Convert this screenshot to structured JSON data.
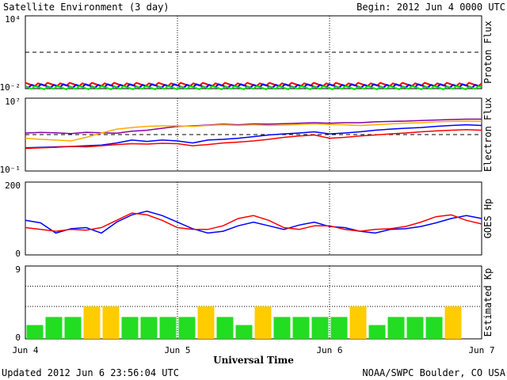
{
  "header": {
    "title": "Satellite Environment (3 day)",
    "begin": "Begin:  2012 Jun 4 0000 UTC"
  },
  "footer": {
    "updated": "Updated 2012 Jun  6 23:56:04 UTC",
    "credit": "NOAA/SWPC Boulder, CO USA"
  },
  "chart_data": [
    {
      "type": "line",
      "ylabel": "Proton Flux",
      "scale": "log",
      "ylim": [
        0.01,
        10000
      ],
      "yticks": [
        "10⁴",
        "10⁻²"
      ],
      "threshold": 10,
      "series": [
        {
          "color": "#ff0000",
          "level": 0.022
        },
        {
          "color": "#0000ff",
          "level": 0.017
        },
        {
          "color": "#00dd00",
          "level": 0.012
        }
      ]
    },
    {
      "type": "line",
      "ylabel": "Electron Flux",
      "scale": "log",
      "ylim": [
        0.1,
        10000000
      ],
      "yticks": [
        "10⁷",
        "10⁻¹"
      ],
      "threshold": 1000,
      "x": [
        0,
        0.1,
        0.2,
        0.3,
        0.4,
        0.5,
        0.6,
        0.7,
        0.8,
        0.9,
        1.0,
        1.1,
        1.2,
        1.3,
        1.4,
        1.5,
        1.6,
        1.7,
        1.8,
        1.9,
        2.0,
        2.1,
        2.2,
        2.3,
        2.4,
        2.5,
        2.6,
        2.7,
        2.8,
        2.9,
        3.0
      ],
      "series": [
        {
          "color": "#8800aa",
          "values": [
            1500,
            1700,
            1600,
            1300,
            1800,
            1600,
            1400,
            2300,
            3000,
            5000,
            8000,
            9000,
            11000,
            14000,
            12000,
            15000,
            14000,
            16000,
            18000,
            20000,
            18000,
            20000,
            20000,
            25000,
            28000,
            30000,
            35000,
            40000,
            45000,
            50000,
            50000
          ]
        },
        {
          "color": "#ffaa00",
          "values": [
            400,
            300,
            250,
            200,
            500,
            1500,
            4000,
            6000,
            8000,
            9000,
            9000,
            8000,
            10000,
            12000,
            10000,
            12000,
            10000,
            11000,
            13000,
            15000,
            13000,
            12000,
            10000,
            12000,
            15000,
            18000,
            20000,
            25000,
            28000,
            30000,
            28000
          ]
        },
        {
          "color": "#0000ff",
          "values": [
            35,
            40,
            45,
            50,
            60,
            70,
            120,
            250,
            180,
            250,
            200,
            120,
            250,
            300,
            400,
            600,
            900,
            1200,
            1500,
            2000,
            1200,
            1500,
            2000,
            3000,
            4000,
            5000,
            6000,
            8000,
            10000,
            12000,
            10000
          ]
        },
        {
          "color": "#ff0000",
          "values": [
            30,
            35,
            40,
            50,
            45,
            60,
            80,
            100,
            90,
            110,
            100,
            60,
            80,
            120,
            150,
            200,
            300,
            500,
            700,
            900,
            400,
            500,
            700,
            900,
            1200,
            1500,
            2000,
            2500,
            3000,
            3500,
            3000
          ]
        }
      ]
    },
    {
      "type": "line",
      "ylabel": "GOES Hp",
      "ylim": [
        0,
        200
      ],
      "yticks": [
        "200",
        "0"
      ],
      "x": [
        0,
        0.1,
        0.2,
        0.3,
        0.4,
        0.5,
        0.6,
        0.7,
        0.8,
        0.9,
        1.0,
        1.1,
        1.2,
        1.3,
        1.4,
        1.5,
        1.6,
        1.7,
        1.8,
        1.9,
        2.0,
        2.1,
        2.2,
        2.3,
        2.4,
        2.5,
        2.6,
        2.7,
        2.8,
        2.9,
        3.0
      ],
      "series": [
        {
          "color": "#0000ff",
          "values": [
            95,
            88,
            60,
            72,
            75,
            60,
            90,
            110,
            120,
            108,
            90,
            72,
            60,
            65,
            80,
            90,
            80,
            70,
            82,
            90,
            78,
            75,
            65,
            60,
            70,
            72,
            78,
            88,
            100,
            108,
            100
          ]
        },
        {
          "color": "#ff0000",
          "values": [
            75,
            70,
            65,
            70,
            68,
            75,
            95,
            115,
            110,
            95,
            75,
            70,
            70,
            80,
            100,
            108,
            95,
            75,
            70,
            80,
            80,
            70,
            65,
            70,
            72,
            78,
            90,
            105,
            110,
            95,
            85
          ]
        }
      ]
    },
    {
      "type": "bar",
      "ylabel": "Estimated Kp",
      "ylim": [
        0,
        9
      ],
      "yticks": [
        "9",
        "0"
      ],
      "categories": [
        "1",
        "2",
        "3",
        "4",
        "5",
        "6",
        "7",
        "8",
        "9",
        "10",
        "11",
        "12",
        "13",
        "14",
        "15",
        "16",
        "17",
        "18",
        "19",
        "20",
        "21",
        "22",
        "23",
        "24"
      ],
      "values": [
        1.7,
        2.7,
        2.7,
        4,
        4,
        2.7,
        2.7,
        2.7,
        2.7,
        4,
        2.7,
        1.7,
        4,
        2.7,
        2.7,
        2.7,
        2.7,
        4,
        1.7,
        2.7,
        2.7,
        2.7,
        4,
        0
      ],
      "colors": {
        "quiet": "#22dd22",
        "active": "#ffcc00"
      },
      "active_threshold": 4,
      "reference_lines": [
        4,
        6.5
      ]
    }
  ],
  "x_axis": {
    "labels": [
      "Jun 4",
      "Jun 5",
      "Jun 6",
      "Jun 7"
    ],
    "title": "Universal Time"
  }
}
